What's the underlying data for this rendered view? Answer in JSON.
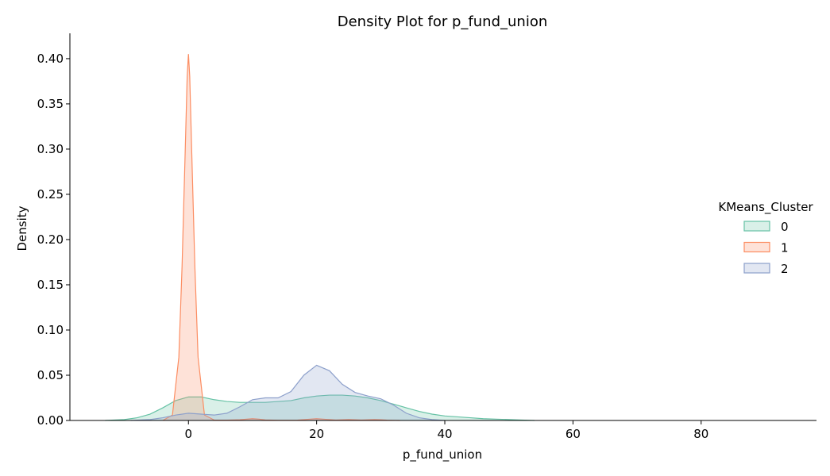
{
  "chart_data": {
    "type": "area",
    "title": "Density Plot for p_fund_union",
    "xlabel": "p_fund_union",
    "ylabel": "Density",
    "xlim": [
      -18.5,
      98
    ],
    "ylim": [
      0,
      0.428
    ],
    "x_ticks": [
      0,
      20,
      40,
      60,
      80
    ],
    "y_ticks": [
      0.0,
      0.05,
      0.1,
      0.15,
      0.2,
      0.25,
      0.3,
      0.35,
      0.4
    ],
    "x_tick_labels": [
      "0",
      "20",
      "40",
      "60",
      "80"
    ],
    "y_tick_labels": [
      "0.00",
      "0.05",
      "0.10",
      "0.15",
      "0.20",
      "0.25",
      "0.30",
      "0.35",
      "0.40"
    ],
    "grid": false,
    "legend": {
      "title": "KMeans_Cluster",
      "placement": "center-right",
      "entries": [
        "0",
        "1",
        "2"
      ]
    },
    "series": [
      {
        "name": "0",
        "color": "#66c2a5",
        "x": [
          -13,
          -10,
          -8,
          -6,
          -4,
          -2,
          0,
          2,
          4,
          6,
          8,
          10,
          12,
          14,
          16,
          18,
          20,
          22,
          24,
          26,
          28,
          30,
          32,
          34,
          36,
          38,
          40,
          42,
          44,
          46,
          48,
          50,
          52,
          54
        ],
        "y": [
          0,
          0.001,
          0.003,
          0.007,
          0.014,
          0.022,
          0.026,
          0.026,
          0.023,
          0.021,
          0.02,
          0.02,
          0.02,
          0.021,
          0.022,
          0.025,
          0.027,
          0.028,
          0.028,
          0.027,
          0.025,
          0.022,
          0.018,
          0.014,
          0.01,
          0.007,
          0.005,
          0.004,
          0.003,
          0.002,
          0.0015,
          0.001,
          0.0005,
          0
        ]
      },
      {
        "name": "1",
        "color": "#fc8d62",
        "x": [
          -4,
          -2.5,
          -1.5,
          -1,
          -0.5,
          -0.2,
          0,
          0.2,
          0.5,
          1,
          1.5,
          2.5,
          4,
          6,
          8,
          10,
          11,
          12,
          14,
          17,
          19,
          20,
          21,
          23,
          25,
          27,
          29,
          30,
          31,
          33
        ],
        "y": [
          0,
          0.006,
          0.07,
          0.17,
          0.3,
          0.38,
          0.405,
          0.38,
          0.3,
          0.17,
          0.07,
          0.006,
          0.0005,
          0.0003,
          0.0008,
          0.002,
          0.0015,
          0.0006,
          0.0002,
          0.0003,
          0.0015,
          0.002,
          0.0015,
          0.0005,
          0.001,
          0.0005,
          0.001,
          0.0008,
          0.0003,
          0
        ]
      },
      {
        "name": "2",
        "color": "#8da0cb",
        "x": [
          -9,
          -6,
          -4,
          -2,
          0,
          2,
          4,
          6,
          8,
          10,
          12,
          14,
          16,
          18,
          20,
          22,
          24,
          26,
          28,
          30,
          32,
          34,
          36,
          38,
          40
        ],
        "y": [
          0,
          0.001,
          0.003,
          0.006,
          0.008,
          0.007,
          0.006,
          0.008,
          0.015,
          0.023,
          0.025,
          0.025,
          0.032,
          0.05,
          0.061,
          0.055,
          0.04,
          0.031,
          0.027,
          0.024,
          0.017,
          0.008,
          0.003,
          0.001,
          0
        ]
      }
    ]
  }
}
